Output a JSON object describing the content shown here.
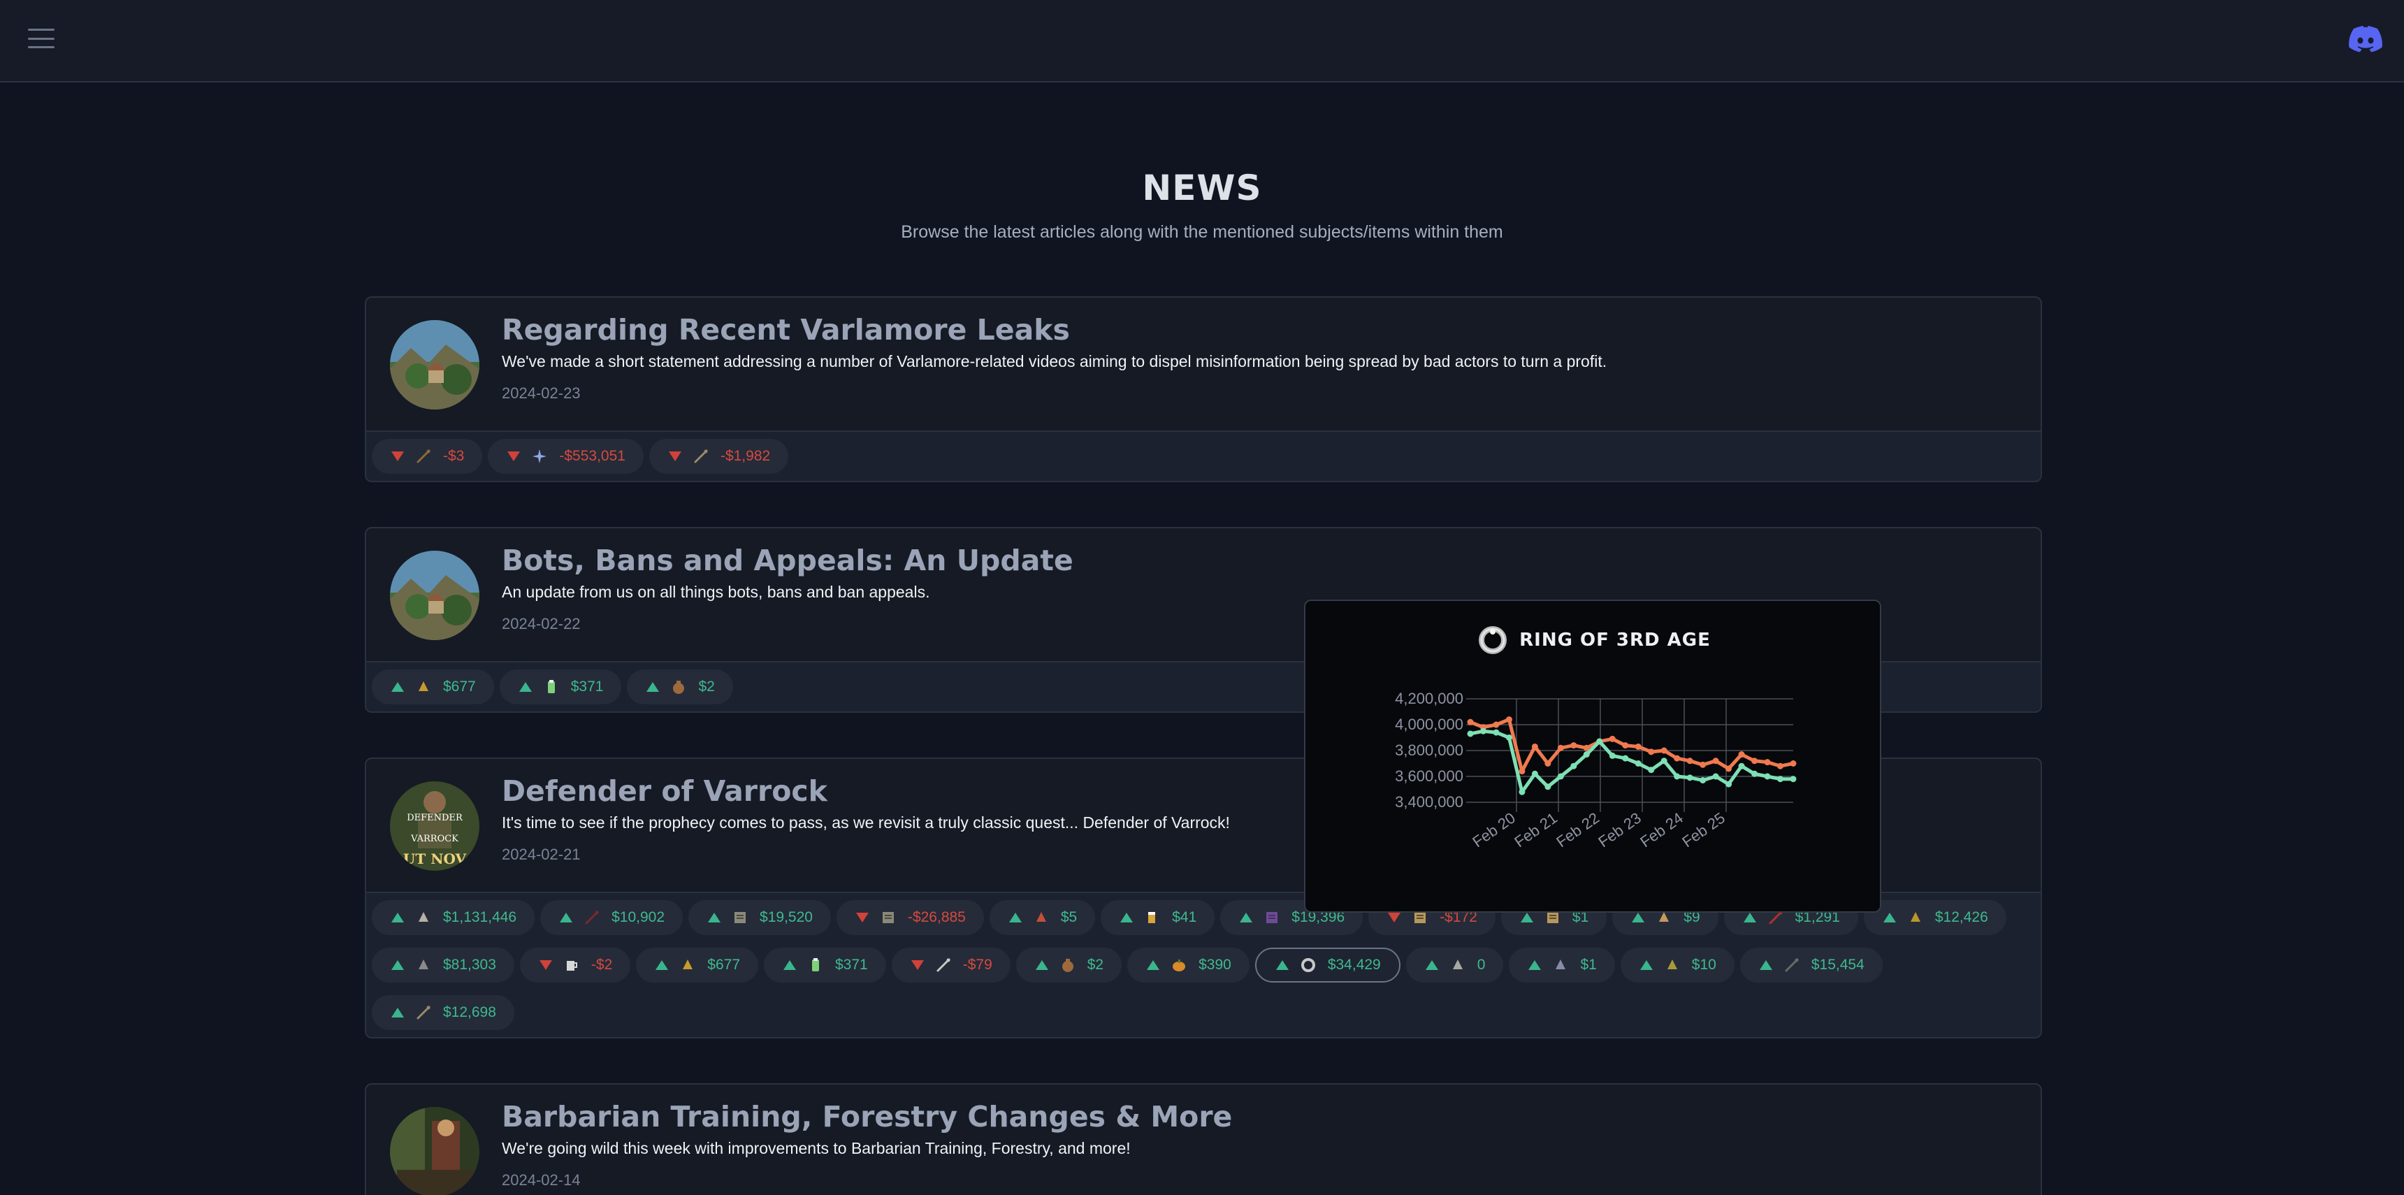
{
  "header": {
    "menu_icon": "hamburger-menu-icon",
    "discord_icon": "discord-icon"
  },
  "page": {
    "title": "NEWS",
    "subtitle": "Browse the latest articles along with the mentioned subjects/items within them"
  },
  "articles": [
    {
      "title": "Regarding Recent Varlamore Leaks",
      "description": "We've made a short statement addressing a number of Varlamore-related videos aiming to dispel misinformation being spread by bad actors to turn a profit.",
      "date": "2024-02-23",
      "items": [
        {
          "dir": "down",
          "value": "-$3",
          "icon": "wand-icon",
          "color": "#8a6b3a"
        },
        {
          "dir": "down",
          "value": "-$553,051",
          "icon": "sparkle-icon",
          "color": "#8fa6e8"
        },
        {
          "dir": "down",
          "value": "-$1,982",
          "icon": "staff-icon",
          "color": "#9a8a6a"
        }
      ]
    },
    {
      "title": "Bots, Bans and Appeals: An Update",
      "description": "An update from us on all things bots, bans and ban appeals.",
      "date": "2024-02-22",
      "items": [
        {
          "dir": "up",
          "value": "$677",
          "icon": "herb-icon",
          "color": "#c79a2e"
        },
        {
          "dir": "up",
          "value": "$371",
          "icon": "potion-icon",
          "color": "#7ed07a"
        },
        {
          "dir": "up",
          "value": "$2",
          "icon": "bag-icon",
          "color": "#9c6a3c"
        }
      ]
    },
    {
      "title": "Defender of Varrock",
      "description": "It's time to see if the prophecy comes to pass, as we revisit a truly classic quest... Defender of Varrock!",
      "date": "2024-02-21",
      "avatar_text_1": "DEFENDER",
      "avatar_text_2": "VARROCK",
      "avatar_text_3": "UT NOV",
      "items": [
        {
          "dir": "up",
          "value": "$1,131,446",
          "icon": "pet-icon",
          "color": "#b9b0a6"
        },
        {
          "dir": "up",
          "value": "$10,902",
          "icon": "dagger-icon",
          "color": "#7a2a2a"
        },
        {
          "dir": "up",
          "value": "$19,520",
          "icon": "map-icon",
          "color": "#8a8a78"
        },
        {
          "dir": "down",
          "value": "-$26,885",
          "icon": "map-icon",
          "color": "#8a8a78"
        },
        {
          "dir": "up",
          "value": "$5",
          "icon": "meat-icon",
          "color": "#c0503a"
        },
        {
          "dir": "up",
          "value": "$41",
          "icon": "beer-icon",
          "color": "#d9a43a"
        },
        {
          "dir": "up",
          "value": "$19,396",
          "icon": "book-icon",
          "color": "#6e4a9a"
        },
        {
          "dir": "down",
          "value": "-$172",
          "icon": "scroll-icon",
          "color": "#b9975a"
        },
        {
          "dir": "up",
          "value": "$1",
          "icon": "scroll-icon",
          "color": "#b9975a"
        },
        {
          "dir": "up",
          "value": "$9",
          "icon": "pie-icon",
          "color": "#c59a5a"
        },
        {
          "dir": "up",
          "value": "$1,291",
          "icon": "arrow-icon",
          "color": "#b0302a"
        },
        {
          "dir": "up",
          "value": "$12,426",
          "icon": "boots-icon",
          "color": "#b8962e"
        },
        {
          "dir": "up",
          "value": "$81,303",
          "icon": "armour-icon",
          "color": "#8a8a8a"
        },
        {
          "dir": "down",
          "value": "-$2",
          "icon": "mug-icon",
          "color": "#d8d8d8"
        },
        {
          "dir": "up",
          "value": "$677",
          "icon": "herb-icon",
          "color": "#c79a2e"
        },
        {
          "dir": "up",
          "value": "$371",
          "icon": "potion-icon",
          "color": "#7ed07a"
        },
        {
          "dir": "down",
          "value": "-$79",
          "icon": "sword-icon",
          "color": "#c8c8c8"
        },
        {
          "dir": "up",
          "value": "$2",
          "icon": "bag-icon",
          "color": "#9c6a3c"
        },
        {
          "dir": "up",
          "value": "$390",
          "icon": "pumpkin-icon",
          "color": "#d98a2a"
        },
        {
          "dir": "up",
          "value": "$34,429",
          "icon": "ring-icon",
          "color": "#c8c8c8",
          "selected": true
        },
        {
          "dir": "up",
          "value": "0",
          "icon": "rock-icon",
          "color": "#a8a8a0"
        },
        {
          "dir": "up",
          "value": "$1",
          "icon": "shell-icon",
          "color": "#8a8aa8"
        },
        {
          "dir": "up",
          "value": "$10",
          "icon": "grain-icon",
          "color": "#a89a3a"
        },
        {
          "dir": "up",
          "value": "$15,454",
          "icon": "feather-icon",
          "color": "#6a6a6a"
        },
        {
          "dir": "up",
          "value": "$12,698",
          "icon": "staff-icon",
          "color": "#9a8a6a"
        }
      ]
    },
    {
      "title": "Barbarian Training, Forestry Changes & More",
      "description": "We're going wild this week with improvements to Barbarian Training, Forestry, and more!",
      "date": "2024-02-14",
      "items": []
    }
  ],
  "popup": {
    "title": "RING OF 3RD AGE",
    "icon": "ring-icon",
    "chart_data": {
      "type": "line",
      "x": [
        "Feb 19 12:00",
        "Feb 19 18:00",
        "Feb 20 00:00",
        "Feb 20 06:00",
        "Feb 20 12:00",
        "Feb 20 18:00",
        "Feb 21 00:00",
        "Feb 21 06:00",
        "Feb 21 12:00",
        "Feb 21 18:00",
        "Feb 22 00:00",
        "Feb 22 06:00",
        "Feb 22 12:00",
        "Feb 22 18:00",
        "Feb 23 00:00",
        "Feb 23 06:00",
        "Feb 23 12:00",
        "Feb 23 18:00",
        "Feb 24 00:00",
        "Feb 24 06:00",
        "Feb 24 12:00",
        "Feb 24 18:00",
        "Feb 25 00:00",
        "Feb 25 06:00",
        "Feb 25 12:00",
        "Feb 25 18:00"
      ],
      "x_ticks": [
        "Feb 20",
        "Feb 21",
        "Feb 22",
        "Feb 23",
        "Feb 24",
        "Feb 25"
      ],
      "y_ticks": [
        "4,200,000",
        "4,000,000",
        "3,800,000",
        "3,600,000",
        "3,400,000"
      ],
      "ylim": [
        3400000,
        4200000
      ],
      "series": [
        {
          "color": "#f07a4f",
          "values": [
            4020000,
            3980000,
            4000000,
            4040000,
            3640000,
            3830000,
            3700000,
            3820000,
            3840000,
            3820000,
            3870000,
            3890000,
            3840000,
            3830000,
            3790000,
            3800000,
            3740000,
            3720000,
            3690000,
            3720000,
            3660000,
            3770000,
            3720000,
            3710000,
            3680000,
            3700000
          ]
        },
        {
          "color": "#7ee0b5",
          "values": [
            3930000,
            3950000,
            3940000,
            3900000,
            3480000,
            3620000,
            3520000,
            3600000,
            3680000,
            3770000,
            3870000,
            3760000,
            3740000,
            3700000,
            3650000,
            3720000,
            3600000,
            3590000,
            3570000,
            3600000,
            3540000,
            3680000,
            3620000,
            3600000,
            3580000,
            3580000
          ]
        }
      ]
    }
  }
}
